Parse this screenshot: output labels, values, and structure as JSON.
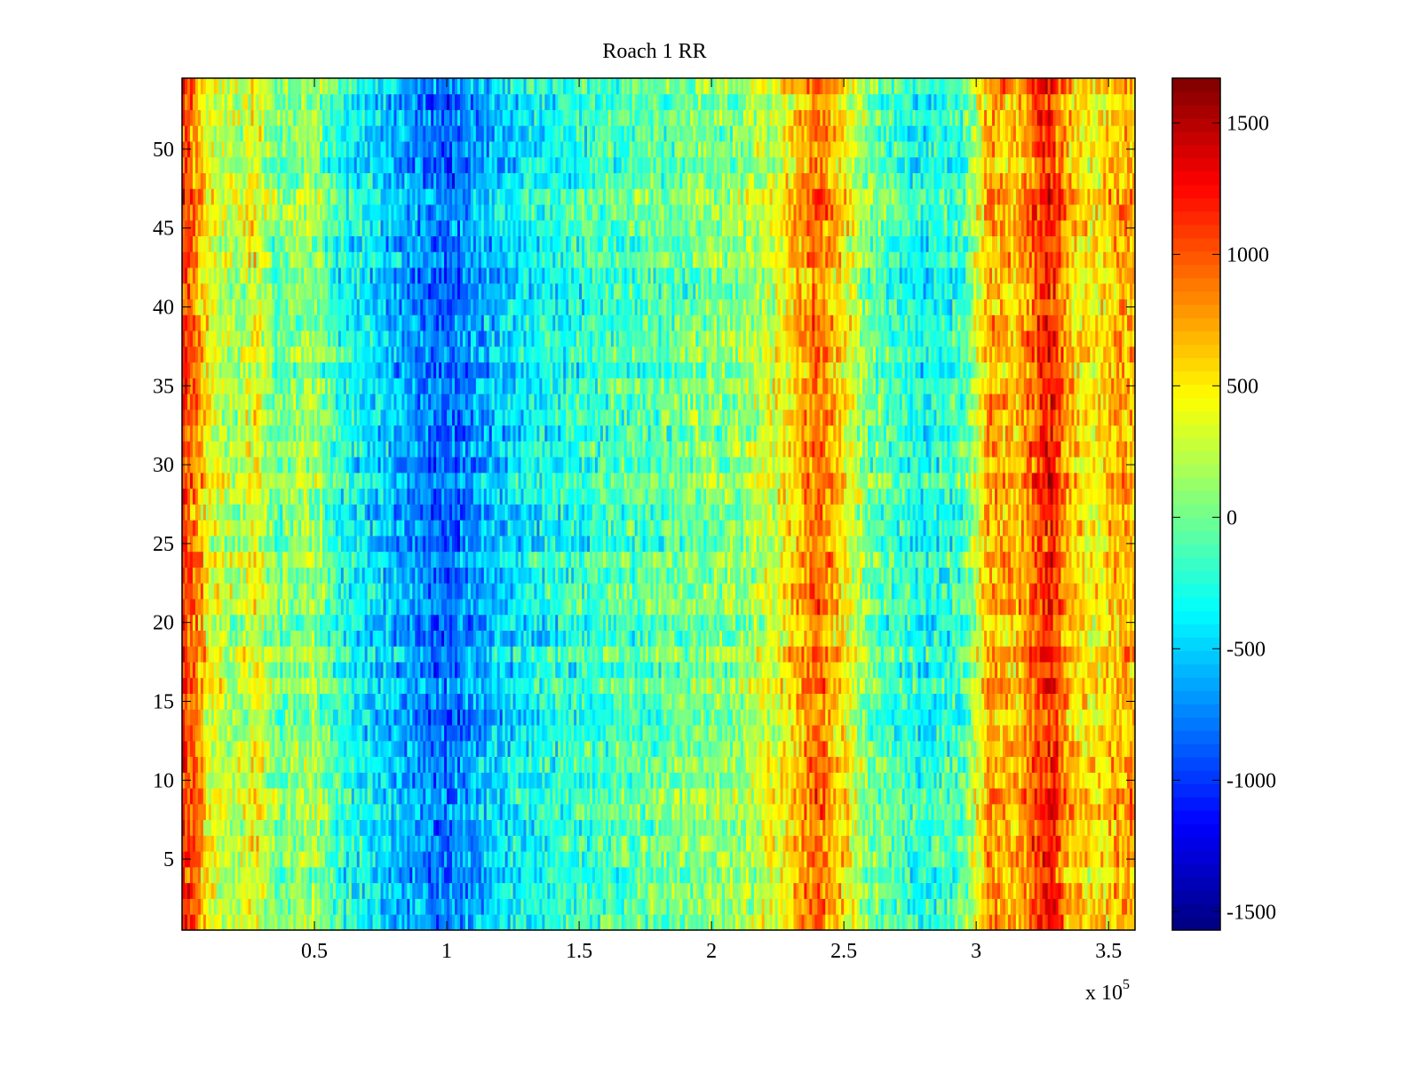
{
  "chart_data": {
    "type": "heatmap",
    "title": "Roach 1 RR",
    "xlabel": "",
    "ylabel": "",
    "x_multiplier_label": "x 10",
    "x_multiplier_exponent": "5",
    "xlim": [
      0,
      3.6
    ],
    "ylim": [
      0.5,
      54.5
    ],
    "rows": 54,
    "columns": 360,
    "xticks": [
      0.5,
      1,
      1.5,
      2,
      2.5,
      3,
      3.5
    ],
    "xtick_labels": [
      "0.5",
      "1",
      "1.5",
      "2",
      "2.5",
      "3",
      "3.5"
    ],
    "yticks": [
      5,
      10,
      15,
      20,
      25,
      30,
      35,
      40,
      45,
      50
    ],
    "ytick_labels": [
      "5",
      "10",
      "15",
      "20",
      "25",
      "30",
      "35",
      "40",
      "45",
      "50"
    ],
    "colormap": "jet",
    "clim": [
      -1570,
      1670
    ],
    "colorbar_ticks": [
      1500,
      1000,
      500,
      0,
      -500,
      -1000,
      -1500
    ],
    "colorbar_tick_labels": [
      "1500",
      "1000",
      "500",
      "0",
      "-500",
      "-1000",
      "-1500"
    ],
    "column_mean_profile": {
      "x": [
        0.0,
        0.05,
        0.1,
        0.2,
        0.28,
        0.35,
        0.5,
        0.6,
        0.8,
        1.0,
        1.1,
        1.3,
        1.6,
        1.9,
        2.1,
        2.25,
        2.4,
        2.5,
        2.6,
        2.8,
        2.95,
        3.05,
        3.15,
        3.28,
        3.35,
        3.45,
        3.55,
        3.6
      ],
      "value": [
        1150,
        900,
        400,
        150,
        450,
        0,
        150,
        -250,
        -550,
        -850,
        -650,
        -350,
        -150,
        0,
        100,
        350,
        950,
        500,
        0,
        -300,
        -150,
        750,
        650,
        1250,
        650,
        450,
        750,
        700
      ]
    },
    "cell_noise_amplitude": 450,
    "grid": false
  }
}
